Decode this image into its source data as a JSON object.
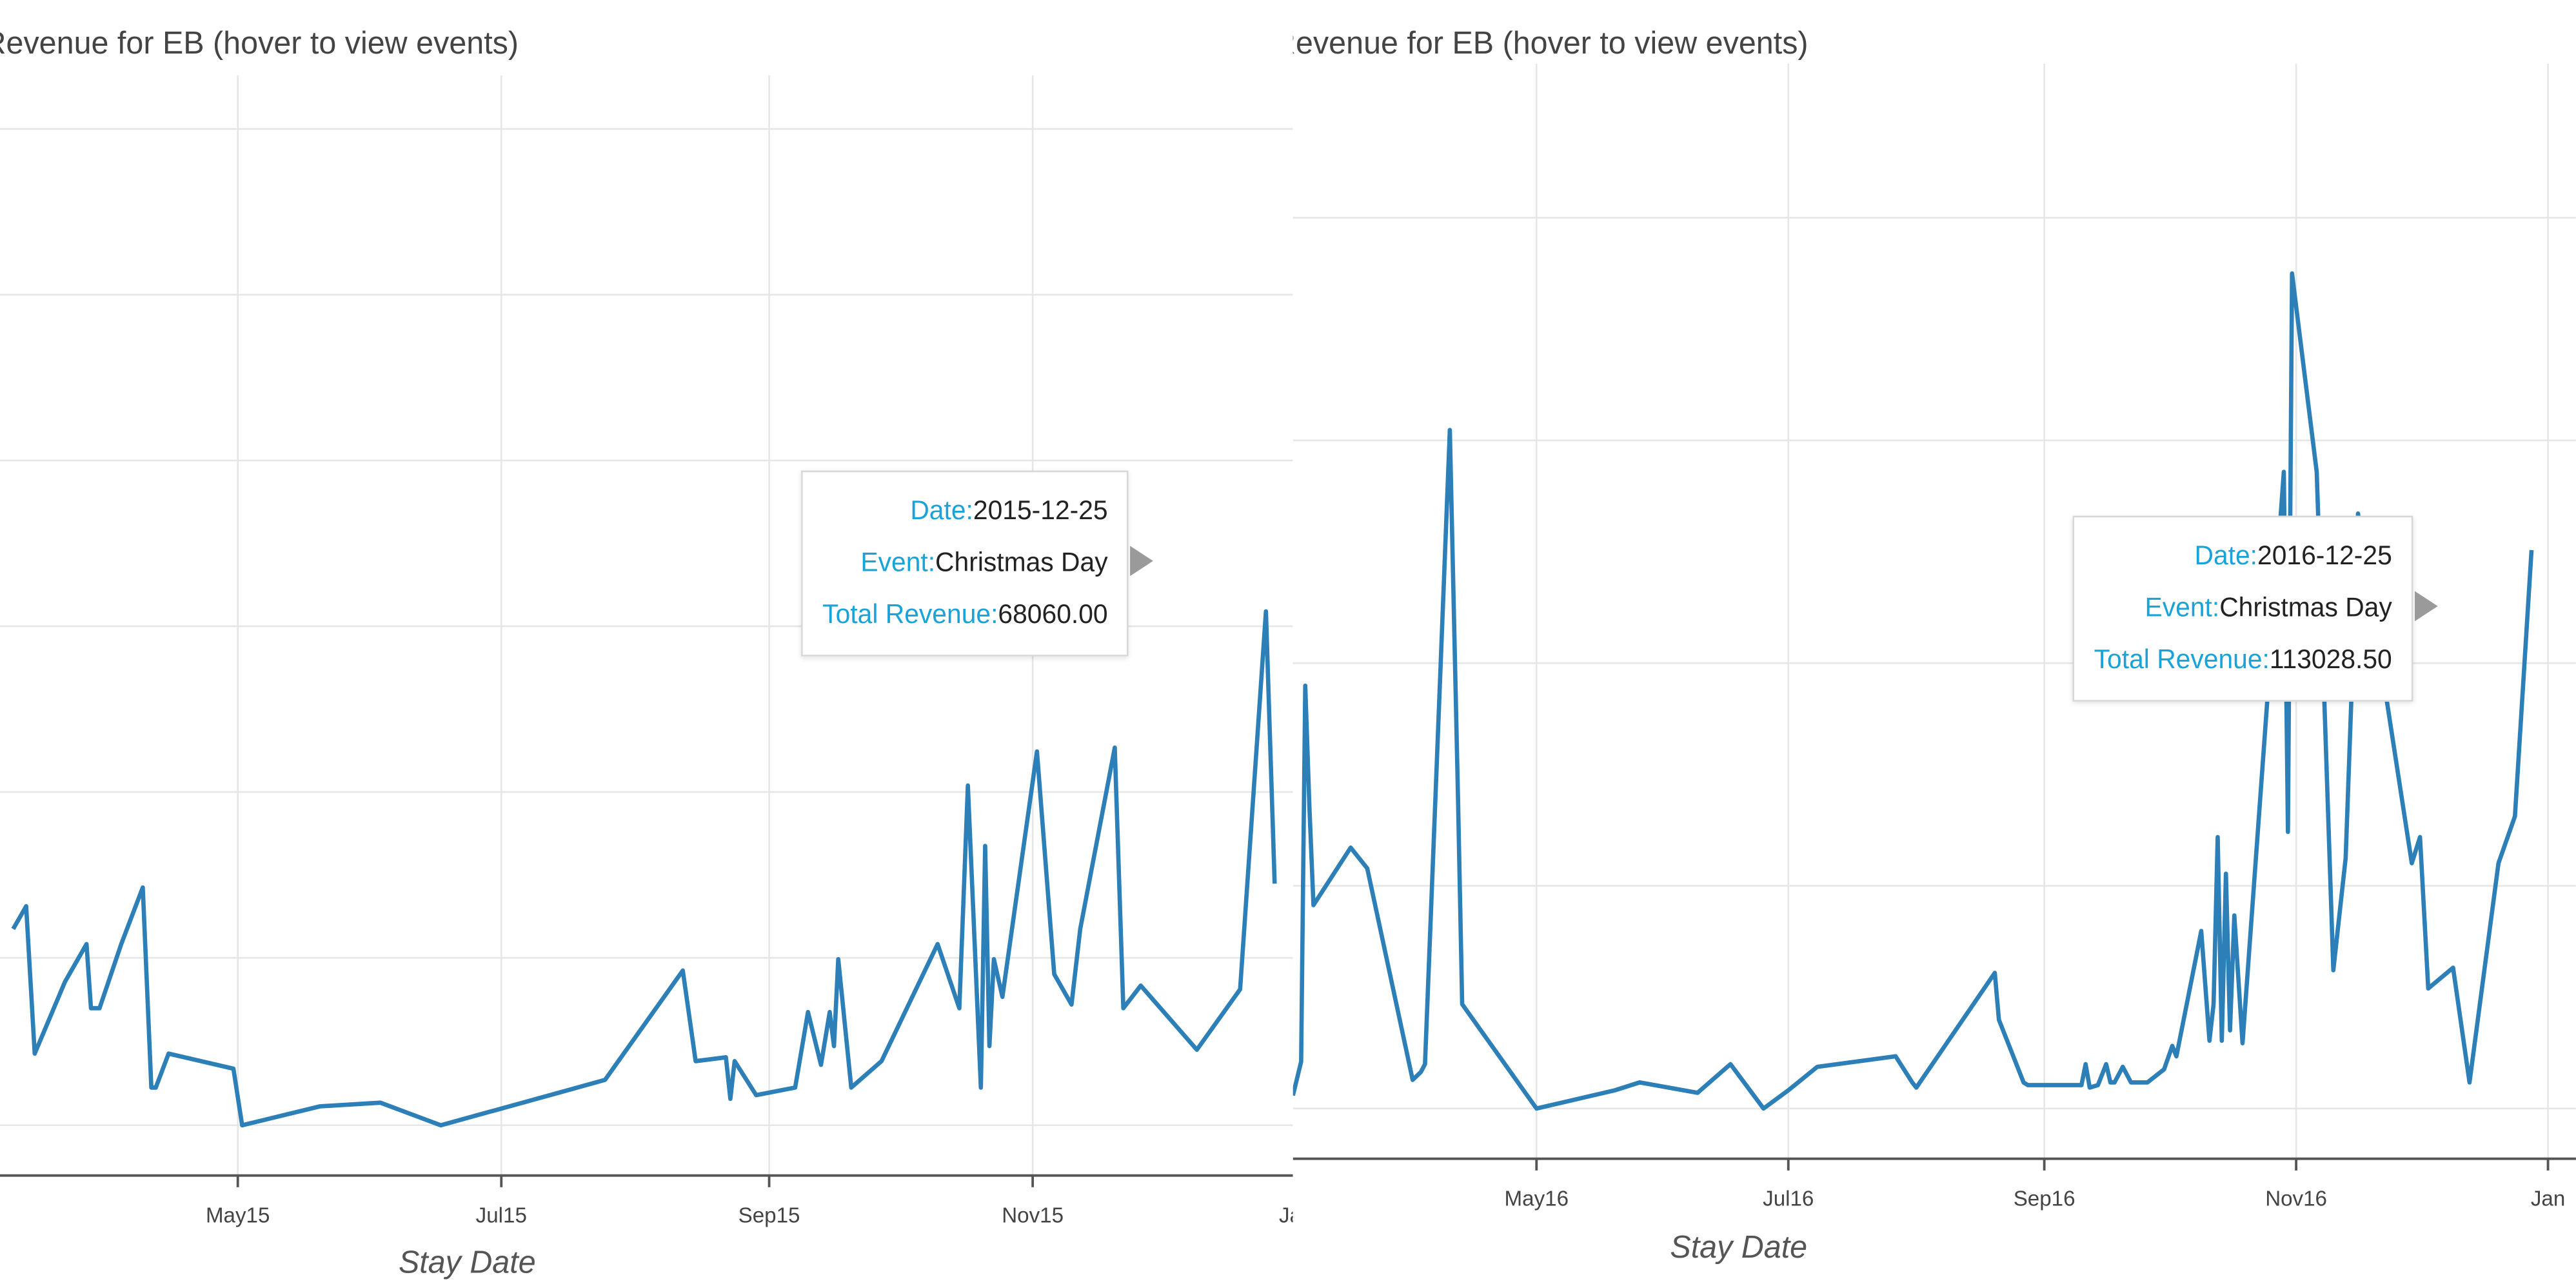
{
  "chart_data": [
    {
      "type": "line",
      "title": "Revenue for EB (hover to view events)",
      "xlabel": "Stay Date",
      "ylabel": "",
      "x_tick_labels": [
        "May15",
        "Jul15",
        "Sep15",
        "Nov15",
        "Jan"
      ],
      "x_ticks": [
        "2015-05-01",
        "2015-07-01",
        "2015-09-01",
        "2015-11-01",
        "2016-01-01"
      ],
      "xlim": [
        "2015-03-10",
        "2016-01-01"
      ],
      "ylim": [
        0,
        110000
      ],
      "grid": true,
      "series": [
        {
          "color": "#2d7fb8",
          "x": [
            "2015-03-10",
            "2015-03-13",
            "2015-03-15",
            "2015-03-22",
            "2015-03-27",
            "2015-03-28",
            "2015-03-30",
            "2015-04-04",
            "2015-04-09",
            "2015-04-11",
            "2015-04-12",
            "2015-04-15",
            "2015-04-30",
            "2015-05-02",
            "2015-05-20",
            "2015-06-03",
            "2015-06-17",
            "2015-07-25",
            "2015-08-12",
            "2015-08-15",
            "2015-08-22",
            "2015-08-23",
            "2015-08-24",
            "2015-08-29",
            "2015-09-07",
            "2015-09-10",
            "2015-09-13",
            "2015-09-15",
            "2015-09-16",
            "2015-09-17",
            "2015-09-20",
            "2015-09-27",
            "2015-10-10",
            "2015-10-15",
            "2015-10-17",
            "2015-10-20",
            "2015-10-21",
            "2015-10-22",
            "2015-10-23",
            "2015-10-25",
            "2015-11-02",
            "2015-11-06",
            "2015-11-10",
            "2015-11-12",
            "2015-11-20",
            "2015-11-22",
            "2015-11-26",
            "2015-12-09",
            "2015-12-19",
            "2015-12-25",
            "2015-12-27"
          ],
          "values": [
            26000,
            29000,
            9500,
            19000,
            24000,
            15500,
            15500,
            24000,
            31500,
            5000,
            5000,
            9500,
            7500,
            0,
            2500,
            3000,
            0,
            6000,
            20500,
            8500,
            9000,
            3500,
            8500,
            4000,
            5000,
            15000,
            8000,
            15000,
            10500,
            22000,
            5000,
            8500,
            24000,
            15500,
            45000,
            5000,
            37000,
            10500,
            22000,
            17000,
            49500,
            20000,
            16000,
            26000,
            50000,
            15500,
            18500,
            10000,
            18000,
            68060,
            32000
          ]
        }
      ],
      "tooltip": {
        "date_key": "Date:",
        "date": "2015-12-25",
        "event_key": "Event:",
        "event": "Christmas Day",
        "revenue_key": "Total Revenue:",
        "revenue": "68060.00"
      }
    },
    {
      "type": "line",
      "title": "Revenue for EB (hover to view events)",
      "xlabel": "Stay Date",
      "ylabel": "",
      "x_tick_labels": [
        "May16",
        "Jul16",
        "Sep16",
        "Nov16",
        "Jan"
      ],
      "x_ticks": [
        "2016-05-01",
        "2016-07-01",
        "2016-09-01",
        "2016-11-01",
        "2017-01-01"
      ],
      "xlim": [
        "2016-03-03",
        "2017-01-01"
      ],
      "ylim": [
        0,
        180000
      ],
      "grid": true,
      "series": [
        {
          "color": "#2d7fb8",
          "x": [
            "2016-03-03",
            "2016-03-05",
            "2016-03-06",
            "2016-03-07",
            "2016-03-08",
            "2016-03-17",
            "2016-03-21",
            "2016-04-01",
            "2016-04-03",
            "2016-04-04",
            "2016-04-10",
            "2016-04-12",
            "2016-04-13",
            "2016-05-01",
            "2016-05-20",
            "2016-05-26",
            "2016-06-09",
            "2016-06-17",
            "2016-06-25",
            "2016-07-01",
            "2016-07-08",
            "2016-07-27",
            "2016-07-31",
            "2016-08-01",
            "2016-08-20",
            "2016-08-21",
            "2016-08-27",
            "2016-08-28",
            "2016-09-10",
            "2016-09-11",
            "2016-09-12",
            "2016-09-14",
            "2016-09-16",
            "2016-09-17",
            "2016-09-18",
            "2016-09-20",
            "2016-09-22",
            "2016-09-26",
            "2016-09-30",
            "2016-10-02",
            "2016-10-03",
            "2016-10-09",
            "2016-10-11",
            "2016-10-12",
            "2016-10-13",
            "2016-10-14",
            "2016-10-15",
            "2016-10-16",
            "2016-10-17",
            "2016-10-19",
            "2016-10-29",
            "2016-10-30",
            "2016-10-31",
            "2016-11-06",
            "2016-11-10",
            "2016-11-13",
            "2016-11-16",
            "2016-11-29",
            "2016-12-01",
            "2016-12-03",
            "2016-12-09",
            "2016-12-13",
            "2016-12-20",
            "2016-12-24",
            "2016-12-28"
          ],
          "values": [
            2500,
            9000,
            81000,
            58000,
            39000,
            50000,
            46000,
            5500,
            7000,
            8500,
            130000,
            59000,
            20000,
            0,
            3500,
            5000,
            3000,
            8500,
            0,
            3500,
            8000,
            10000,
            5000,
            4000,
            26000,
            17000,
            5000,
            4500,
            4500,
            8500,
            4000,
            4500,
            8500,
            5000,
            5000,
            8000,
            5000,
            5000,
            7500,
            12000,
            10000,
            34000,
            13000,
            20000,
            52000,
            13000,
            45000,
            15000,
            37000,
            12500,
            122000,
            53000,
            160000,
            122000,
            26500,
            48000,
            114000,
            47000,
            52000,
            23000,
            27000,
            5000,
            47000,
            56000,
            107000
          ]
        }
      ],
      "tooltip": {
        "date_key": "Date:",
        "date": "2016-12-25",
        "event_key": "Event:",
        "event": "Christmas Day",
        "revenue_key": "Total Revenue:",
        "revenue": "113028.50"
      }
    }
  ]
}
